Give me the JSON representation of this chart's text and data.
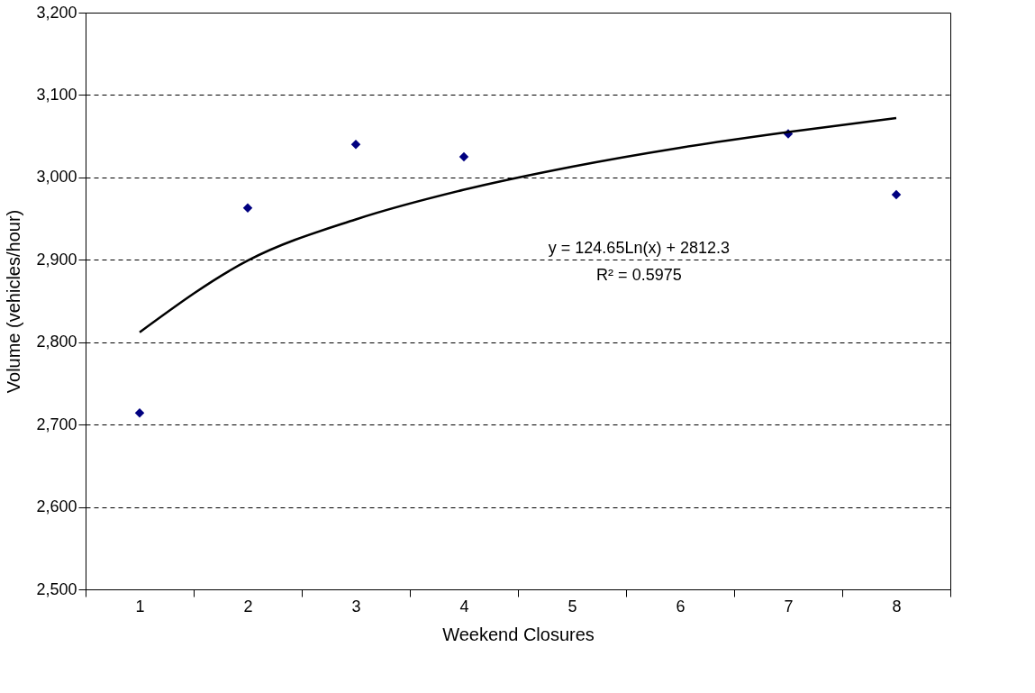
{
  "chart_data": {
    "type": "scatter",
    "xlabel": "Weekend Closures",
    "ylabel": "Volume (vehicles/hour)",
    "categories": [
      "1",
      "2",
      "3",
      "4",
      "5",
      "6",
      "7",
      "8"
    ],
    "series": [
      {
        "color": "#000080",
        "marker": "diamond",
        "values": [
          2714,
          2963,
          3040,
          3025,
          null,
          null,
          3053,
          2979
        ]
      },
      {
        "type": "line",
        "color": "#000000",
        "line_style": "solid",
        "values": [
          2812,
          2899,
          2949,
          2985,
          3013,
          3036,
          3055,
          3072
        ]
      }
    ],
    "ylim": [
      2500,
      3200
    ],
    "yticks": [
      {
        "value": 2500,
        "label": "2,500"
      },
      {
        "value": 2600,
        "label": "2,600"
      },
      {
        "value": 2700,
        "label": "2,700"
      },
      {
        "value": 2800,
        "label": "2,800"
      },
      {
        "value": 2900,
        "label": "2,900"
      },
      {
        "value": 3000,
        "label": "3,000"
      },
      {
        "value": 3100,
        "label": "3,100"
      },
      {
        "value": 3200,
        "label": "3,200"
      }
    ],
    "grid": "y",
    "annotations": [
      "y = 124.65Ln(x) + 2812.3",
      "R² = 0.5975"
    ]
  }
}
